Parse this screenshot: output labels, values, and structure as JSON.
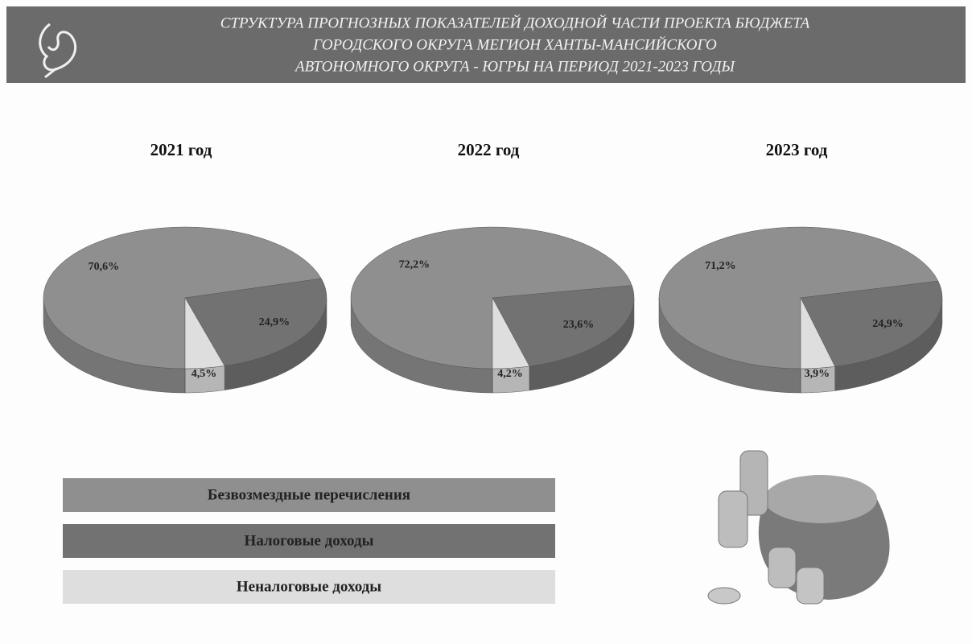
{
  "header": {
    "title_lines": [
      "СТРУКТУРА ПРОГНОЗНЫХ ПОКАЗАТЕЛЕЙ ДОХОДНОЙ ЧАСТИ ПРОЕКТА БЮДЖЕТА",
      "ГОРОДСКОГО ОКРУГА МЕГИОН ХАНТЫ-МАНСИЙСКОГО",
      "АВТОНОМНОГО ОКРУГА - ЮГРЫ НА ПЕРИОД 2021-2023 ГОДЫ"
    ]
  },
  "legend": {
    "items": [
      {
        "name": "Безвозмездные перечисления",
        "color": "#8f8f8f"
      },
      {
        "name": "Налоговые доходы",
        "color": "#727272"
      },
      {
        "name": "Неналоговые доходы",
        "color": "#dedede"
      }
    ]
  },
  "chart_data": [
    {
      "type": "pie",
      "title": "2021 год",
      "values": [
        70.6,
        24.9,
        4.5
      ],
      "value_labels": [
        "70,6%",
        "24,9%",
        "4,5%"
      ]
    },
    {
      "type": "pie",
      "title": "2022 год",
      "values": [
        72.2,
        23.6,
        4.2
      ],
      "value_labels": [
        "72,2%",
        "23,6%",
        "4,2%"
      ]
    },
    {
      "type": "pie",
      "title": "2023 год",
      "values": [
        71.2,
        24.9,
        3.9
      ],
      "value_labels": [
        "71,2%",
        "24,9%",
        "3,9%"
      ]
    }
  ]
}
